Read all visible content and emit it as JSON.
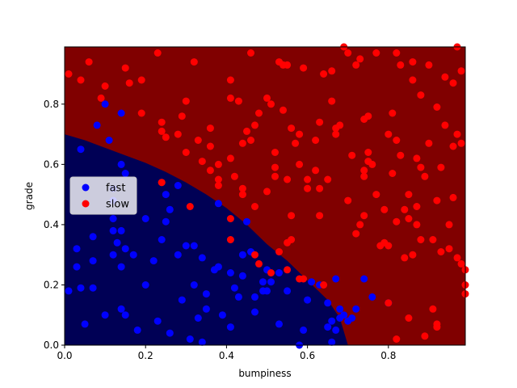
{
  "chart_data": {
    "type": "scatter",
    "xlabel": "bumpiness",
    "ylabel": "grade",
    "xlim": [
      0.0,
      0.99
    ],
    "ylim": [
      0.0,
      0.99
    ],
    "xticks": [
      "0.0",
      "0.2",
      "0.4",
      "0.6",
      "0.8"
    ],
    "yticks": [
      "0.0",
      "0.2",
      "0.4",
      "0.6",
      "0.8"
    ],
    "grid": false,
    "legend_position": "center-left",
    "background": "decision regions: fast (dark navy) in lower-left, slow (dark red) elsewhere",
    "region_colors": {
      "fast": "#000055",
      "slow": "#800000"
    },
    "decision_boundary": [
      [
        0.0,
        0.7
      ],
      [
        0.05,
        0.68
      ],
      [
        0.1,
        0.655
      ],
      [
        0.15,
        0.63
      ],
      [
        0.2,
        0.605
      ],
      [
        0.25,
        0.575
      ],
      [
        0.3,
        0.54
      ],
      [
        0.35,
        0.5
      ],
      [
        0.4,
        0.455
      ],
      [
        0.45,
        0.4
      ],
      [
        0.5,
        0.335
      ],
      [
        0.55,
        0.28
      ],
      [
        0.6,
        0.215
      ],
      [
        0.65,
        0.15
      ],
      [
        0.68,
        0.09
      ],
      [
        0.7,
        0.0
      ]
    ],
    "series": [
      {
        "name": "fast",
        "color": "#0000ff",
        "points": [
          [
            0.1,
            0.8
          ],
          [
            0.08,
            0.73
          ],
          [
            0.14,
            0.77
          ],
          [
            0.11,
            0.68
          ],
          [
            0.04,
            0.65
          ],
          [
            0.14,
            0.6
          ],
          [
            0.15,
            0.57
          ],
          [
            0.12,
            0.52
          ],
          [
            0.12,
            0.48
          ],
          [
            0.12,
            0.42
          ],
          [
            0.12,
            0.38
          ],
          [
            0.14,
            0.38
          ],
          [
            0.13,
            0.34
          ],
          [
            0.15,
            0.32
          ],
          [
            0.17,
            0.3
          ],
          [
            0.12,
            0.3
          ],
          [
            0.14,
            0.26
          ],
          [
            0.07,
            0.36
          ],
          [
            0.07,
            0.28
          ],
          [
            0.03,
            0.32
          ],
          [
            0.03,
            0.26
          ],
          [
            0.01,
            0.18
          ],
          [
            0.04,
            0.19
          ],
          [
            0.07,
            0.19
          ],
          [
            0.05,
            0.07
          ],
          [
            0.1,
            0.1
          ],
          [
            0.14,
            0.12
          ],
          [
            0.15,
            0.1
          ],
          [
            0.18,
            0.05
          ],
          [
            0.2,
            0.42
          ],
          [
            0.22,
            0.28
          ],
          [
            0.2,
            0.2
          ],
          [
            0.24,
            0.35
          ],
          [
            0.25,
            0.41
          ],
          [
            0.25,
            0.5
          ],
          [
            0.26,
            0.45
          ],
          [
            0.28,
            0.53
          ],
          [
            0.28,
            0.3
          ],
          [
            0.29,
            0.15
          ],
          [
            0.3,
            0.33
          ],
          [
            0.31,
            0.02
          ],
          [
            0.32,
            0.2
          ],
          [
            0.32,
            0.33
          ],
          [
            0.34,
            0.29
          ],
          [
            0.34,
            0.01
          ],
          [
            0.35,
            0.12
          ],
          [
            0.37,
            0.25
          ],
          [
            0.38,
            0.26
          ],
          [
            0.38,
            0.47
          ],
          [
            0.41,
            0.06
          ],
          [
            0.41,
            0.24
          ],
          [
            0.42,
            0.19
          ],
          [
            0.43,
            0.16
          ],
          [
            0.44,
            0.3
          ],
          [
            0.44,
            0.23
          ],
          [
            0.45,
            0.41
          ],
          [
            0.46,
            0.31
          ],
          [
            0.47,
            0.11
          ],
          [
            0.49,
            0.21
          ],
          [
            0.49,
            0.18
          ],
          [
            0.5,
            0.25
          ],
          [
            0.5,
            0.18
          ],
          [
            0.51,
            0.21
          ],
          [
            0.53,
            0.24
          ],
          [
            0.53,
            0.07
          ],
          [
            0.55,
            0.18
          ],
          [
            0.59,
            0.05
          ],
          [
            0.6,
            0.15
          ],
          [
            0.61,
            0.21
          ],
          [
            0.63,
            0.2
          ],
          [
            0.65,
            0.14
          ],
          [
            0.65,
            0.06
          ],
          [
            0.66,
            0.08
          ],
          [
            0.67,
            0.05
          ],
          [
            0.68,
            0.12
          ],
          [
            0.68,
            0.09
          ],
          [
            0.69,
            0.1
          ],
          [
            0.7,
            0.08
          ],
          [
            0.71,
            0.09
          ],
          [
            0.72,
            0.12
          ],
          [
            0.67,
            0.22
          ],
          [
            0.74,
            0.22
          ],
          [
            0.76,
            0.16
          ],
          [
            0.8,
            0.14
          ],
          [
            0.26,
            0.04
          ],
          [
            0.35,
            0.17
          ],
          [
            0.47,
            0.16
          ],
          [
            0.23,
            0.08
          ],
          [
            0.33,
            0.09
          ],
          [
            0.39,
            0.1
          ],
          [
            0.58,
            0.0
          ],
          [
            0.66,
            0.01
          ]
        ]
      },
      {
        "name": "slow",
        "color": "#ff0000",
        "points": [
          [
            0.01,
            0.9
          ],
          [
            0.04,
            0.88
          ],
          [
            0.06,
            0.94
          ],
          [
            0.09,
            0.82
          ],
          [
            0.1,
            0.86
          ],
          [
            0.15,
            0.92
          ],
          [
            0.16,
            0.87
          ],
          [
            0.19,
            0.88
          ],
          [
            0.19,
            0.77
          ],
          [
            0.23,
            0.97
          ],
          [
            0.24,
            0.74
          ],
          [
            0.24,
            0.71
          ],
          [
            0.25,
            0.69
          ],
          [
            0.28,
            0.7
          ],
          [
            0.29,
            0.76
          ],
          [
            0.3,
            0.81
          ],
          [
            0.3,
            0.64
          ],
          [
            0.32,
            0.94
          ],
          [
            0.33,
            0.68
          ],
          [
            0.34,
            0.61
          ],
          [
            0.36,
            0.72
          ],
          [
            0.36,
            0.66
          ],
          [
            0.38,
            0.6
          ],
          [
            0.38,
            0.55
          ],
          [
            0.38,
            0.53
          ],
          [
            0.41,
            0.88
          ],
          [
            0.41,
            0.82
          ],
          [
            0.41,
            0.62
          ],
          [
            0.42,
            0.56
          ],
          [
            0.43,
            0.81
          ],
          [
            0.44,
            0.67
          ],
          [
            0.44,
            0.52
          ],
          [
            0.44,
            0.5
          ],
          [
            0.45,
            0.71
          ],
          [
            0.46,
            0.97
          ],
          [
            0.46,
            0.68
          ],
          [
            0.47,
            0.73
          ],
          [
            0.48,
            0.77
          ],
          [
            0.5,
            0.82
          ],
          [
            0.5,
            0.51
          ],
          [
            0.51,
            0.8
          ],
          [
            0.52,
            0.64
          ],
          [
            0.52,
            0.59
          ],
          [
            0.52,
            0.56
          ],
          [
            0.53,
            0.94
          ],
          [
            0.54,
            0.93
          ],
          [
            0.54,
            0.78
          ],
          [
            0.55,
            0.93
          ],
          [
            0.55,
            0.55
          ],
          [
            0.56,
            0.72
          ],
          [
            0.57,
            0.67
          ],
          [
            0.58,
            0.7
          ],
          [
            0.58,
            0.6
          ],
          [
            0.59,
            0.92
          ],
          [
            0.6,
            0.55
          ],
          [
            0.6,
            0.52
          ],
          [
            0.62,
            0.68
          ],
          [
            0.62,
            0.58
          ],
          [
            0.63,
            0.74
          ],
          [
            0.63,
            0.52
          ],
          [
            0.64,
            0.9
          ],
          [
            0.65,
            0.55
          ],
          [
            0.66,
            0.91
          ],
          [
            0.66,
            0.81
          ],
          [
            0.67,
            0.72
          ],
          [
            0.68,
            0.73
          ],
          [
            0.69,
            0.99
          ],
          [
            0.7,
            0.48
          ],
          [
            0.7,
            0.97
          ],
          [
            0.71,
            0.63
          ],
          [
            0.72,
            0.93
          ],
          [
            0.72,
            0.37
          ],
          [
            0.73,
            0.95
          ],
          [
            0.73,
            0.4
          ],
          [
            0.74,
            0.56
          ],
          [
            0.74,
            0.58
          ],
          [
            0.74,
            0.75
          ],
          [
            0.75,
            0.76
          ],
          [
            0.75,
            0.61
          ],
          [
            0.75,
            0.64
          ],
          [
            0.76,
            0.6
          ],
          [
            0.77,
            0.5
          ],
          [
            0.78,
            0.33
          ],
          [
            0.79,
            0.34
          ],
          [
            0.79,
            0.45
          ],
          [
            0.8,
            0.33
          ],
          [
            0.8,
            0.14
          ],
          [
            0.8,
            0.7
          ],
          [
            0.81,
            0.77
          ],
          [
            0.81,
            0.57
          ],
          [
            0.82,
            0.41
          ],
          [
            0.82,
            0.68
          ],
          [
            0.83,
            0.93
          ],
          [
            0.83,
            0.63
          ],
          [
            0.84,
            0.45
          ],
          [
            0.84,
            0.29
          ],
          [
            0.85,
            0.42
          ],
          [
            0.85,
            0.5
          ],
          [
            0.86,
            0.3
          ],
          [
            0.86,
            0.88
          ],
          [
            0.86,
            0.94
          ],
          [
            0.87,
            0.46
          ],
          [
            0.87,
            0.4
          ],
          [
            0.87,
            0.62
          ],
          [
            0.88,
            0.59
          ],
          [
            0.88,
            0.83
          ],
          [
            0.89,
            0.03
          ],
          [
            0.89,
            0.56
          ],
          [
            0.9,
            0.93
          ],
          [
            0.9,
            0.67
          ],
          [
            0.91,
            0.12
          ],
          [
            0.91,
            0.35
          ],
          [
            0.92,
            0.79
          ],
          [
            0.92,
            0.48
          ],
          [
            0.93,
            0.59
          ],
          [
            0.93,
            0.31
          ],
          [
            0.94,
            0.89
          ],
          [
            0.94,
            0.73
          ],
          [
            0.95,
            0.4
          ],
          [
            0.95,
            0.32
          ],
          [
            0.96,
            0.87
          ],
          [
            0.96,
            0.66
          ],
          [
            0.97,
            0.29
          ],
          [
            0.97,
            0.99
          ],
          [
            0.97,
            0.7
          ],
          [
            0.98,
            0.67
          ],
          [
            0.98,
            0.27
          ],
          [
            0.98,
            0.91
          ],
          [
            0.99,
            0.25
          ],
          [
            0.99,
            0.17
          ],
          [
            0.53,
            0.31
          ],
          [
            0.55,
            0.34
          ],
          [
            0.56,
            0.35
          ],
          [
            0.55,
            0.25
          ],
          [
            0.58,
            0.22
          ],
          [
            0.59,
            0.22
          ],
          [
            0.64,
            0.2
          ],
          [
            0.51,
            0.24
          ],
          [
            0.48,
            0.27
          ],
          [
            0.47,
            0.3
          ],
          [
            0.41,
            0.42
          ],
          [
            0.41,
            0.35
          ],
          [
            0.31,
            0.46
          ],
          [
            0.24,
            0.54
          ],
          [
            0.24,
            0.54
          ],
          [
            0.82,
            0.02
          ],
          [
            0.85,
            0.09
          ],
          [
            0.88,
            0.35
          ],
          [
            0.92,
            0.07
          ],
          [
            0.92,
            0.06
          ],
          [
            0.96,
            0.49
          ],
          [
            0.99,
            0.2
          ],
          [
            0.74,
            0.43
          ],
          [
            0.77,
            0.97
          ],
          [
            0.82,
            0.97
          ],
          [
            0.63,
            0.43
          ],
          [
            0.67,
            0.7
          ],
          [
            0.56,
            0.43
          ],
          [
            0.47,
            0.46
          ],
          [
            0.36,
            0.58
          ]
        ]
      }
    ]
  }
}
